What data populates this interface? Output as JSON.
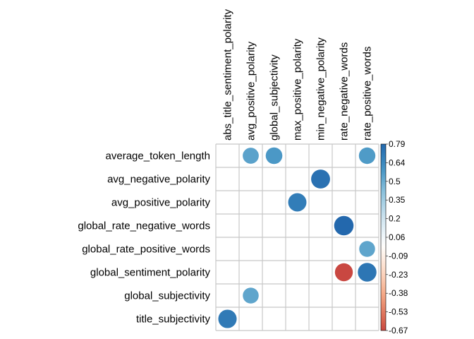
{
  "chart_data": {
    "type": "heatmap",
    "style": "corrplot-circle",
    "rows": [
      "average_token_length",
      "avg_negative_polarity",
      "avg_positive_polarity",
      "global_rate_negative_words",
      "global_rate_positive_words",
      "global_sentiment_polarity",
      "global_subjectivity",
      "title_subjectivity"
    ],
    "columns": [
      "abs_title_sentiment_polarity",
      "avg_positive_polarity",
      "global_subjectivity",
      "max_positive_polarity",
      "min_negative_polarity",
      "rate_negative_words",
      "rate_positive_words"
    ],
    "cells": [
      {
        "row": "average_token_length",
        "col": "avg_positive_polarity",
        "value": 0.54
      },
      {
        "row": "average_token_length",
        "col": "global_subjectivity",
        "value": 0.58
      },
      {
        "row": "average_token_length",
        "col": "rate_positive_words",
        "value": 0.57
      },
      {
        "row": "avg_negative_polarity",
        "col": "min_negative_polarity",
        "value": 0.75
      },
      {
        "row": "avg_positive_polarity",
        "col": "max_positive_polarity",
        "value": 0.7
      },
      {
        "row": "global_rate_negative_words",
        "col": "rate_negative_words",
        "value": 0.79
      },
      {
        "row": "global_rate_positive_words",
        "col": "rate_positive_words",
        "value": 0.53
      },
      {
        "row": "global_sentiment_polarity",
        "col": "rate_negative_words",
        "value": -0.67
      },
      {
        "row": "global_sentiment_polarity",
        "col": "rate_positive_words",
        "value": 0.73
      },
      {
        "row": "global_subjectivity",
        "col": "avg_positive_polarity",
        "value": 0.53
      },
      {
        "row": "title_subjectivity",
        "col": "abs_title_sentiment_polarity",
        "value": 0.71
      }
    ],
    "colorbar": {
      "min": -0.67,
      "max": 0.79,
      "ticks": [
        "0.79",
        "0.64",
        "0.5",
        "0.35",
        "0.2",
        "0.06",
        "-0.09",
        "-0.23",
        "-0.38",
        "-0.53",
        "-0.67"
      ],
      "colors": [
        "#67001f",
        "#b2182b",
        "#d6604d",
        "#f4a582",
        "#fddbc7",
        "#ffffff",
        "#d1e5f0",
        "#92c5de",
        "#4393c3",
        "#2166ac",
        "#053061"
      ]
    },
    "grid": true,
    "legend_placement": "right"
  }
}
